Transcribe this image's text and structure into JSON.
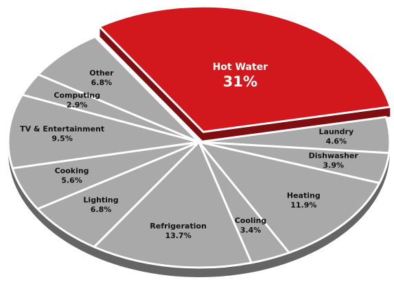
{
  "chart_data": {
    "type": "pie3d",
    "categories": [
      "Hot Water",
      "Laundry",
      "Dishwasher",
      "Heating",
      "Cooling",
      "Refrigeration",
      "Lighting",
      "Cooking",
      "TV & Entertainment",
      "Computing",
      "Other"
    ],
    "values": [
      31,
      4.6,
      3.9,
      11.9,
      3.4,
      13.7,
      6.8,
      5.6,
      9.5,
      2.9,
      6.8
    ],
    "value_labels": [
      "31%",
      "4.6%",
      "3.9%",
      "11.9%",
      "3.4%",
      "13.7%",
      "6.8%",
      "5.6%",
      "9.5%",
      "2.9%",
      "6.8%"
    ],
    "colors": [
      "#d2181d",
      "#a9a9a9",
      "#a9a9a9",
      "#a9a9a9",
      "#a9a9a9",
      "#a9a9a9",
      "#a9a9a9",
      "#a9a9a9",
      "#a9a9a9",
      "#a9a9a9",
      "#a9a9a9"
    ],
    "exploded": [
      0
    ]
  }
}
